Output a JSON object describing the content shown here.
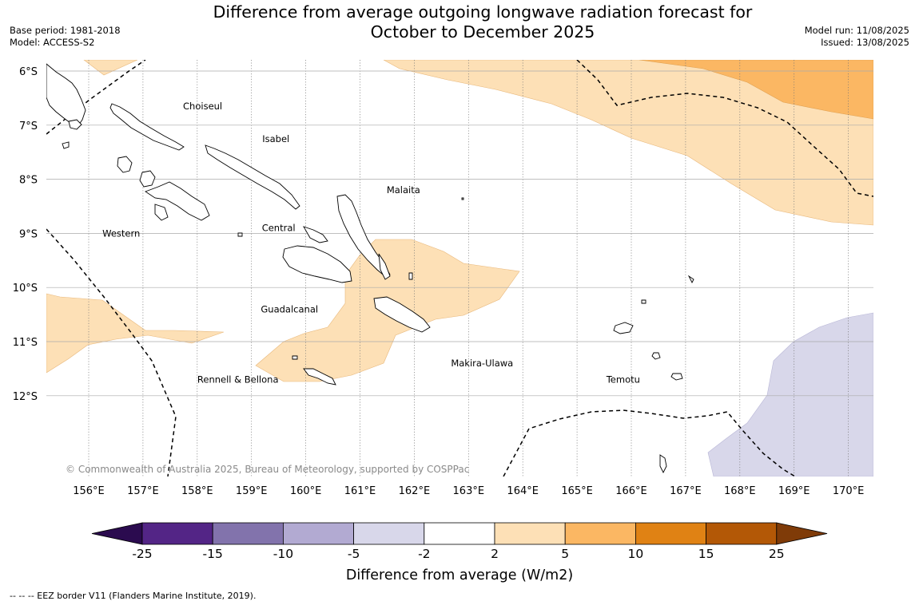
{
  "title": {
    "line1": "Difference from average outgoing longwave radiation forecast for",
    "line2": "October to December 2025"
  },
  "meta_left": {
    "base_period": "Base period: 1981-2018",
    "model": "Model: ACCESS-S2"
  },
  "meta_right": {
    "model_run": "Model run: 11/08/2025",
    "issued": "Issued: 13/08/2025"
  },
  "map": {
    "lon_labels": [
      "156°E",
      "157°E",
      "158°E",
      "159°E",
      "160°E",
      "161°E",
      "162°E",
      "163°E",
      "164°E",
      "165°E",
      "166°E",
      "167°E",
      "168°E",
      "169°E",
      "170°E"
    ],
    "lat_labels": [
      "6°S",
      "7°S",
      "8°S",
      "9°S",
      "10°S",
      "11°S",
      "12°S"
    ],
    "regions": [
      {
        "name": "Choiseul",
        "lon": 158.1,
        "lat": -6.65
      },
      {
        "name": "Isabel",
        "lon": 159.45,
        "lat": -7.25
      },
      {
        "name": "Malaita",
        "lon": 161.8,
        "lat": -8.2
      },
      {
        "name": "Western",
        "lon": 156.6,
        "lat": -9.0
      },
      {
        "name": "Central",
        "lon": 159.5,
        "lat": -8.9
      },
      {
        "name": "Guadalcanal",
        "lon": 159.7,
        "lat": -10.4
      },
      {
        "name": "Makira-Ulawa",
        "lon": 163.25,
        "lat": -11.4
      },
      {
        "name": "Temotu",
        "lon": 165.85,
        "lat": -11.7
      },
      {
        "name": "Rennell & Bellona",
        "lon": 158.75,
        "lat": -11.7
      }
    ],
    "copyright": "© Commonwealth of Australia 2025, Bureau of Meteorology, supported by COSPPac"
  },
  "colorbar": {
    "ticks": [
      "-25",
      "-15",
      "-10",
      "-5",
      "-2",
      "2",
      "5",
      "10",
      "15",
      "25"
    ],
    "colors": [
      "#2b0b4f",
      "#532586",
      "#8273ac",
      "#b2aad2",
      "#d8d7ea",
      "#ffffff",
      "#fde0b6",
      "#fbb763",
      "#e08214",
      "#b35806",
      "#7f3b08"
    ],
    "label": "Difference from average (W/m2)"
  },
  "legend_footer": "--  --  -- EEZ border V11 (Flanders Marine Institute, 2019)."
}
